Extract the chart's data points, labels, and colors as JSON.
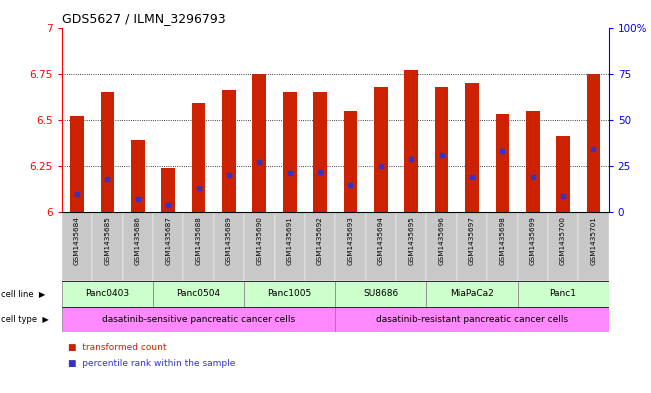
{
  "title": "GDS5627 / ILMN_3296793",
  "samples": [
    "GSM1435684",
    "GSM1435685",
    "GSM1435686",
    "GSM1435687",
    "GSM1435688",
    "GSM1435689",
    "GSM1435690",
    "GSM1435691",
    "GSM1435692",
    "GSM1435693",
    "GSM1435694",
    "GSM1435695",
    "GSM1435696",
    "GSM1435697",
    "GSM1435698",
    "GSM1435699",
    "GSM1435700",
    "GSM1435701"
  ],
  "bar_heights": [
    6.52,
    6.65,
    6.39,
    6.24,
    6.59,
    6.66,
    6.75,
    6.65,
    6.65,
    6.55,
    6.68,
    6.77,
    6.68,
    6.7,
    6.53,
    6.55,
    6.41,
    6.75
  ],
  "blue_dot_y": [
    6.1,
    6.18,
    6.07,
    6.04,
    6.13,
    6.2,
    6.27,
    6.21,
    6.22,
    6.15,
    6.25,
    6.29,
    6.31,
    6.19,
    6.33,
    6.19,
    6.09,
    6.34
  ],
  "ylim_left": [
    6.0,
    7.0
  ],
  "ylim_right": [
    0,
    100
  ],
  "yticks_left": [
    6.0,
    6.25,
    6.5,
    6.75,
    7.0
  ],
  "ytick_labels_left": [
    "6",
    "6.25",
    "6.5",
    "6.75",
    "7"
  ],
  "yticks_right": [
    0,
    25,
    50,
    75,
    100
  ],
  "ytick_labels_right": [
    "0",
    "25",
    "50",
    "75",
    "100%"
  ],
  "bar_color": "#CC2200",
  "dot_color": "#3333CC",
  "cell_lines": [
    {
      "label": "Panc0403",
      "start": 0,
      "end": 2
    },
    {
      "label": "Panc0504",
      "start": 3,
      "end": 5
    },
    {
      "label": "Panc1005",
      "start": 6,
      "end": 8
    },
    {
      "label": "SU8686",
      "start": 9,
      "end": 11
    },
    {
      "label": "MiaPaCa2",
      "start": 12,
      "end": 14
    },
    {
      "label": "Panc1",
      "start": 15,
      "end": 17
    }
  ],
  "ct_ranges": [
    [
      0,
      8
    ],
    [
      9,
      17
    ]
  ],
  "ct_labels": [
    "dasatinib-sensitive pancreatic cancer cells",
    "dasatinib-resistant pancreatic cancer cells"
  ],
  "ct_color": "#FF88FF",
  "cell_line_bg": "#CCFFCC",
  "sample_bg": "#C8C8C8",
  "dot_grid_lines": [
    6.25,
    6.5,
    6.75
  ]
}
